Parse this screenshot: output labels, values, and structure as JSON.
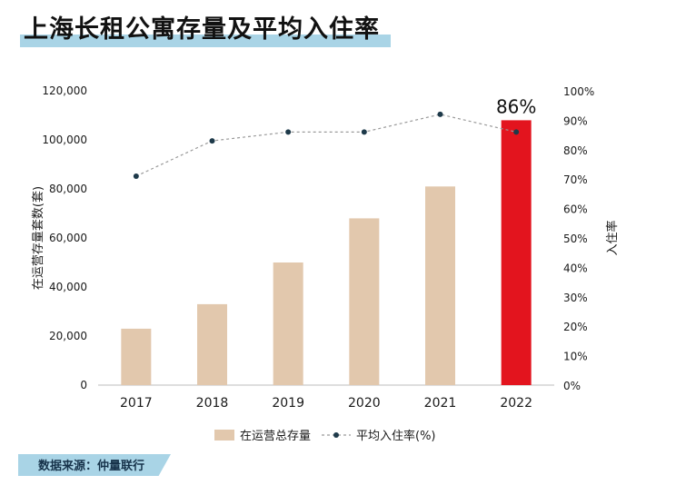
{
  "title": "上海长租公寓存量及平均入住率",
  "source": "数据来源：仲量联行",
  "colors": {
    "bar": "#e2c8ad",
    "highlight_bar": "#e3141e",
    "line": "#9a9a9a",
    "marker": "#1e3a4a",
    "band": "#a9d4e6"
  },
  "chart_data": {
    "type": "bar",
    "categories": [
      "2017",
      "2018",
      "2019",
      "2020",
      "2021",
      "2022"
    ],
    "series": [
      {
        "name": "在运营总存量",
        "type": "bar",
        "axis": "left",
        "values": [
          23000,
          33000,
          50000,
          68000,
          81000,
          108000
        ]
      },
      {
        "name": "平均入住率(%)",
        "type": "line",
        "axis": "right",
        "values": [
          71,
          83,
          86,
          86,
          92,
          86
        ]
      }
    ],
    "highlight": {
      "category": "2022",
      "label": "86%"
    },
    "ylabel": "在运营存量套数(套)",
    "y2label": "入住率",
    "ylim": [
      0,
      120000
    ],
    "y2lim": [
      0,
      100
    ],
    "yticks": [
      "0",
      "20,000",
      "40,000",
      "60,000",
      "80,000",
      "100,000",
      "120,000"
    ],
    "y2ticks": [
      "0%",
      "10%",
      "20%",
      "30%",
      "40%",
      "50%",
      "60%",
      "70%",
      "80%",
      "90%",
      "100%"
    ],
    "legend": "bottom"
  }
}
